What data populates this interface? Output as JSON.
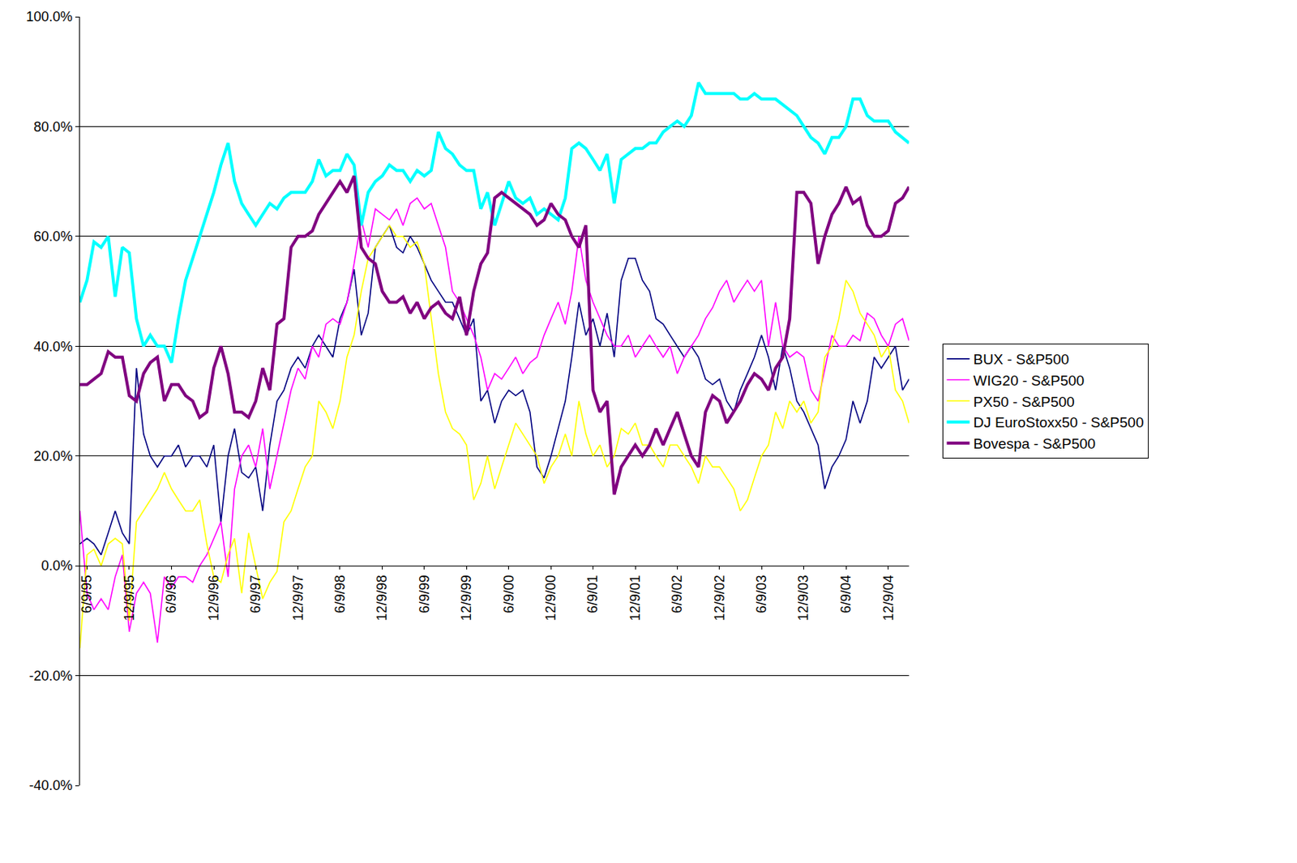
{
  "chart_data": {
    "type": "line",
    "x": [
      "1995-05-09",
      "1995-06-09",
      "1995-07-09",
      "1995-08-09",
      "1995-09-09",
      "1995-10-09",
      "1995-11-09",
      "1995-12-09",
      "1996-01-09",
      "1996-02-09",
      "1996-03-09",
      "1996-04-09",
      "1996-05-09",
      "1996-06-09",
      "1996-07-09",
      "1996-08-09",
      "1996-09-09",
      "1996-10-09",
      "1996-11-09",
      "1996-12-09",
      "1997-01-09",
      "1997-02-09",
      "1997-03-09",
      "1997-04-09",
      "1997-05-09",
      "1997-06-09",
      "1997-07-09",
      "1997-08-09",
      "1997-09-09",
      "1997-10-09",
      "1997-11-09",
      "1997-12-09",
      "1998-01-09",
      "1998-02-09",
      "1998-03-09",
      "1998-04-09",
      "1998-05-09",
      "1998-06-09",
      "1998-07-09",
      "1998-08-09",
      "1998-09-09",
      "1998-10-09",
      "1998-11-09",
      "1998-12-09",
      "1999-01-09",
      "1999-02-09",
      "1999-03-09",
      "1999-04-09",
      "1999-05-09",
      "1999-06-09",
      "1999-07-09",
      "1999-08-09",
      "1999-09-09",
      "1999-10-09",
      "1999-11-09",
      "1999-12-09",
      "2000-01-09",
      "2000-02-09",
      "2000-03-09",
      "2000-04-09",
      "2000-05-09",
      "2000-06-09",
      "2000-07-09",
      "2000-08-09",
      "2000-09-09",
      "2000-10-09",
      "2000-11-09",
      "2000-12-09",
      "2001-01-09",
      "2001-02-09",
      "2001-03-09",
      "2001-04-09",
      "2001-05-09",
      "2001-06-09",
      "2001-07-09",
      "2001-08-09",
      "2001-09-09",
      "2001-10-09",
      "2001-11-09",
      "2001-12-09",
      "2002-01-09",
      "2002-02-09",
      "2002-03-09",
      "2002-04-09",
      "2002-05-09",
      "2002-06-09",
      "2002-07-09",
      "2002-08-09",
      "2002-09-09",
      "2002-10-09",
      "2002-11-09",
      "2002-12-09",
      "2003-01-09",
      "2003-02-09",
      "2003-03-09",
      "2003-04-09",
      "2003-05-09",
      "2003-06-09",
      "2003-07-09",
      "2003-08-09",
      "2003-09-09",
      "2003-10-09",
      "2003-11-09",
      "2003-12-09",
      "2004-01-09",
      "2004-02-09",
      "2004-03-09",
      "2004-04-09",
      "2004-05-09",
      "2004-06-09",
      "2004-07-09",
      "2004-08-09",
      "2004-09-09",
      "2004-10-09",
      "2004-11-09",
      "2004-12-09",
      "2005-01-09",
      "2005-02-09",
      "2005-03-09"
    ],
    "series": [
      {
        "name": "BUX - S&P500",
        "color": "#000080",
        "line_style": "solid",
        "values": [
          4,
          5,
          4,
          2,
          6,
          10,
          6,
          4,
          36,
          24,
          20,
          18,
          20,
          20,
          22,
          18,
          20,
          20,
          18,
          22,
          8,
          20,
          25,
          17,
          16,
          18,
          10,
          22,
          30,
          32,
          36,
          38,
          36,
          40,
          42,
          40,
          38,
          45,
          48,
          54,
          42,
          46,
          58,
          60,
          62,
          58,
          57,
          60,
          58,
          55,
          52,
          50,
          48,
          48,
          45,
          42,
          45,
          30,
          32,
          26,
          30,
          32,
          31,
          32,
          28,
          18,
          16,
          20,
          25,
          30,
          38,
          48,
          42,
          45,
          40,
          46,
          38,
          52,
          56,
          56,
          52,
          50,
          45,
          44,
          42,
          40,
          38,
          40,
          38,
          34,
          33,
          34,
          30,
          28,
          32,
          35,
          38,
          42,
          38,
          32,
          40,
          36,
          30,
          28,
          25,
          22,
          14,
          18,
          20,
          23,
          30,
          26,
          30,
          38,
          36,
          38,
          40,
          32,
          34
        ]
      },
      {
        "name": "WIG20 - S&P500",
        "color": "#FF00FF",
        "line_style": "solid",
        "values": [
          10,
          -5,
          -8,
          -6,
          -8,
          -2,
          2,
          -12,
          -5,
          -3,
          -5,
          -14,
          -2,
          -4,
          -2,
          -2,
          -3,
          0,
          2,
          5,
          8,
          -2,
          14,
          20,
          22,
          18,
          25,
          14,
          20,
          26,
          32,
          36,
          34,
          40,
          38,
          44,
          45,
          44,
          48,
          55,
          63,
          58,
          65,
          64,
          63,
          65,
          62,
          66,
          67,
          65,
          66,
          62,
          58,
          50,
          48,
          45,
          42,
          38,
          32,
          35,
          34,
          36,
          38,
          35,
          37,
          38,
          42,
          45,
          48,
          44,
          50,
          60,
          52,
          48,
          45,
          42,
          40,
          40,
          42,
          38,
          40,
          42,
          40,
          38,
          40,
          35,
          38,
          40,
          42,
          45,
          47,
          50,
          52,
          48,
          50,
          52,
          50,
          52,
          40,
          48,
          40,
          38,
          39,
          38,
          32,
          30,
          36,
          42,
          40,
          40,
          42,
          41,
          46,
          45,
          42,
          40,
          44,
          45,
          41
        ]
      },
      {
        "name": "PX50 - S&P500",
        "color": "#FFFF00",
        "line_style": "solid",
        "values": [
          -15,
          2,
          3,
          0,
          4,
          5,
          4,
          -10,
          8,
          10,
          12,
          14,
          17,
          14,
          12,
          10,
          10,
          12,
          4,
          -2,
          -3,
          2,
          5,
          -5,
          6,
          0,
          -6,
          -3,
          -1,
          8,
          10,
          14,
          18,
          20,
          30,
          28,
          25,
          30,
          38,
          42,
          50,
          56,
          58,
          60,
          62,
          60,
          60,
          58,
          59,
          55,
          45,
          35,
          28,
          25,
          24,
          22,
          12,
          15,
          20,
          14,
          18,
          22,
          26,
          24,
          22,
          20,
          15,
          18,
          20,
          24,
          20,
          30,
          24,
          20,
          22,
          18,
          20,
          25,
          24,
          26,
          22,
          22,
          20,
          18,
          22,
          22,
          20,
          18,
          15,
          20,
          18,
          18,
          16,
          14,
          10,
          12,
          16,
          20,
          22,
          28,
          25,
          30,
          28,
          30,
          26,
          28,
          38,
          40,
          45,
          52,
          50,
          46,
          44,
          42,
          38,
          40,
          32,
          30,
          26
        ]
      },
      {
        "name": "DJ EuroStoxx50 - S&P500",
        "color": "#00FFFF",
        "line_style": "thick",
        "values": [
          48,
          52,
          59,
          58,
          60,
          49,
          58,
          57,
          45,
          40,
          42,
          40,
          40,
          37,
          45,
          52,
          56,
          60,
          64,
          68,
          73,
          77,
          70,
          66,
          64,
          62,
          64,
          66,
          65,
          67,
          68,
          68,
          68,
          70,
          74,
          71,
          72,
          72,
          75,
          73,
          62,
          68,
          70,
          71,
          73,
          72,
          72,
          70,
          72,
          71,
          72,
          79,
          76,
          75,
          73,
          72,
          72,
          65,
          68,
          62,
          66,
          70,
          67,
          66,
          67,
          64,
          65,
          64,
          63,
          67,
          76,
          77,
          76,
          74,
          72,
          75,
          66,
          74,
          75,
          76,
          76,
          77,
          77,
          79,
          80,
          81,
          80,
          82,
          88,
          86,
          86,
          86,
          86,
          86,
          85,
          85,
          86,
          85,
          85,
          85,
          84,
          83,
          82,
          80,
          78,
          77,
          75,
          78,
          78,
          80,
          85,
          85,
          82,
          81,
          81,
          81,
          79,
          78,
          77
        ]
      },
      {
        "name": "Bovespa - S&P500",
        "color": "#800080",
        "line_style": "thick",
        "values": [
          33,
          33,
          34,
          35,
          39,
          38,
          38,
          31,
          30,
          35,
          37,
          38,
          30,
          33,
          33,
          31,
          30,
          27,
          28,
          36,
          40,
          35,
          28,
          28,
          27,
          30,
          36,
          32,
          44,
          45,
          58,
          60,
          60,
          61,
          64,
          66,
          68,
          70,
          68,
          71,
          58,
          56,
          55,
          50,
          48,
          48,
          49,
          46,
          48,
          45,
          47,
          48,
          46,
          45,
          49,
          42,
          50,
          55,
          57,
          67,
          68,
          67,
          66,
          65,
          64,
          62,
          63,
          66,
          64,
          63,
          60,
          58,
          62,
          32,
          28,
          30,
          13,
          18,
          20,
          22,
          20,
          22,
          25,
          22,
          25,
          28,
          24,
          20,
          18,
          28,
          31,
          30,
          26,
          28,
          30,
          33,
          35,
          34,
          32,
          36,
          38,
          45,
          68,
          68,
          66,
          55,
          60,
          64,
          66,
          69,
          66,
          67,
          62,
          60,
          60,
          61,
          66,
          67,
          69
        ]
      }
    ],
    "xlim": [
      "1995-05-09",
      "2005-03-09"
    ],
    "xticks": [
      {
        "value": "1995-06-09",
        "label": "6/9/95"
      },
      {
        "value": "1995-12-09",
        "label": "12/9/95"
      },
      {
        "value": "1996-06-09",
        "label": "6/9/96"
      },
      {
        "value": "1996-12-09",
        "label": "12/9/96"
      },
      {
        "value": "1997-06-09",
        "label": "6/9/97"
      },
      {
        "value": "1997-12-09",
        "label": "12/9/97"
      },
      {
        "value": "1998-06-09",
        "label": "6/9/98"
      },
      {
        "value": "1998-12-09",
        "label": "12/9/98"
      },
      {
        "value": "1999-06-09",
        "label": "6/9/99"
      },
      {
        "value": "1999-12-09",
        "label": "12/9/99"
      },
      {
        "value": "2000-06-09",
        "label": "6/9/00"
      },
      {
        "value": "2000-12-09",
        "label": "12/9/00"
      },
      {
        "value": "2001-06-09",
        "label": "6/9/01"
      },
      {
        "value": "2001-12-09",
        "label": "12/9/01"
      },
      {
        "value": "2002-06-09",
        "label": "6/9/02"
      },
      {
        "value": "2002-12-09",
        "label": "12/9/02"
      },
      {
        "value": "2003-06-09",
        "label": "6/9/03"
      },
      {
        "value": "2003-12-09",
        "label": "12/9/03"
      },
      {
        "value": "2004-06-09",
        "label": "6/9/04"
      },
      {
        "value": "2004-12-09",
        "label": "12/9/04"
      }
    ],
    "ylim": [
      -40,
      100
    ],
    "yticks": [
      {
        "value": -40,
        "label": "-40.0%"
      },
      {
        "value": -20,
        "label": "-20.0%"
      },
      {
        "value": 0,
        "label": "0.0%"
      },
      {
        "value": 20,
        "label": "20.0%"
      },
      {
        "value": 40,
        "label": "40.0%"
      },
      {
        "value": 60,
        "label": "60.0%"
      },
      {
        "value": 80,
        "label": "80.0%"
      },
      {
        "value": 100,
        "label": "100.0%"
      }
    ],
    "grid": true,
    "legend": "right"
  }
}
